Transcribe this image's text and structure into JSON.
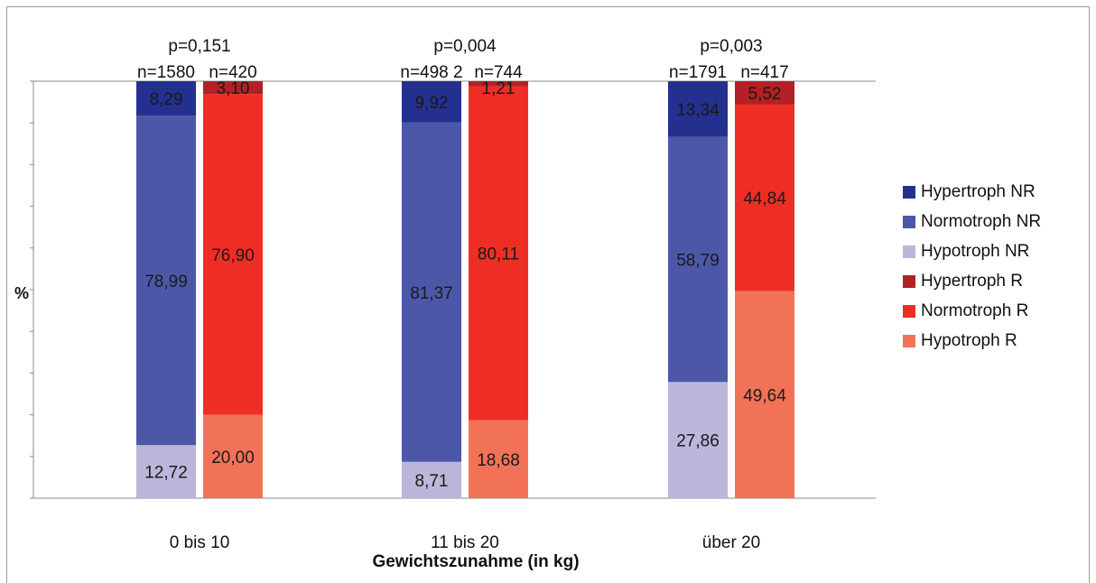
{
  "chart_data": {
    "type": "bar",
    "stacked": true,
    "normalized_percent": true,
    "ylabel": "%",
    "xlabel": "Gewichtszunahme (in kg)",
    "ylim": [
      0,
      100
    ],
    "categories": [
      "0 bis 10",
      "11 bis 20",
      "über 20"
    ],
    "groups": [
      {
        "category": "0 bis 10",
        "p_label": "p=0,151",
        "bars": [
          {
            "key": "NR",
            "n_label": "n=1580",
            "segments": [
              12.72,
              78.99,
              8.29
            ],
            "labels": [
              "12,72",
              "78,99",
              "8,29"
            ]
          },
          {
            "key": "R",
            "n_label": "n=420",
            "segments": [
              20.0,
              76.9,
              3.1
            ],
            "labels": [
              "20,00",
              "76,90",
              "3,10"
            ]
          }
        ]
      },
      {
        "category": "11 bis 20",
        "p_label": "p=0,004",
        "bars": [
          {
            "key": "NR",
            "n_label": "n=498 2",
            "segments": [
              8.71,
              81.37,
              9.92
            ],
            "labels": [
              "8,71",
              "81,37",
              "9,92"
            ]
          },
          {
            "key": "R",
            "n_label": "n=744",
            "segments": [
              18.68,
              80.11,
              1.21
            ],
            "labels": [
              "18,68",
              "80,11",
              "1,21"
            ]
          }
        ]
      },
      {
        "category": "über 20",
        "p_label": "p=0,003",
        "bars": [
          {
            "key": "NR",
            "n_label": "n=1791",
            "segments": [
              27.86,
              58.79,
              13.34
            ],
            "labels": [
              "27,86",
              "58,79",
              "13,34"
            ]
          },
          {
            "key": "R",
            "n_label": "n=417",
            "segments": [
              49.64,
              44.84,
              5.52
            ],
            "labels": [
              "49,64",
              "44,84",
              "5,52"
            ]
          }
        ]
      }
    ],
    "segment_colors": {
      "NR": [
        "#bbb6da",
        "#4d57a8",
        "#24308f"
      ],
      "R": [
        "#f27257",
        "#ee2e24",
        "#b32025"
      ]
    },
    "grid": false,
    "legend_position": "right",
    "legend": [
      {
        "label": "Hypertroph NR",
        "color": "#24308f"
      },
      {
        "label": "Normotroph NR",
        "color": "#4d57a8"
      },
      {
        "label": "Hypotroph NR",
        "color": "#bbb6da"
      },
      {
        "label": "Hypertroph R",
        "color": "#b32025"
      },
      {
        "label": "Normotroph R",
        "color": "#ee2e24"
      },
      {
        "label": "Hypotroph R",
        "color": "#f27257"
      }
    ]
  }
}
